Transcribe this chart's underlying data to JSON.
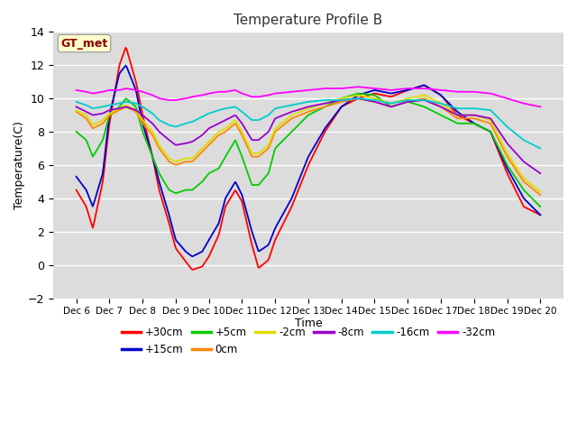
{
  "title": "Temperature Profile B",
  "xlabel": "Time",
  "ylabel": "Temperature(C)",
  "annotation": "GT_met",
  "ylim": [
    -2,
    14
  ],
  "yticks": [
    -2,
    0,
    2,
    4,
    6,
    8,
    10,
    12,
    14
  ],
  "bg_color": "#dcdcdc",
  "series_colors": {
    "+30cm": "#ff0000",
    "+15cm": "#0000cc",
    "+5cm": "#00cc00",
    "0cm": "#ff8800",
    "-2cm": "#dddd00",
    "-8cm": "#9900cc",
    "-16cm": "#00cccc",
    "-32cm": "#ff00ff"
  },
  "xtick_labels": [
    "Dec 6",
    "Dec 7",
    "Dec 8",
    "Dec 9",
    "Dec 10",
    "Dec 11",
    "Dec 12",
    "Dec 13",
    "Dec 14",
    "Dec 15",
    "Dec 16",
    "Dec 17",
    "Dec 18",
    "Dec 19",
    "Dec 20"
  ],
  "legend_row1": [
    "+30cm",
    "+15cm",
    "+5cm",
    "0cm",
    "-2cm",
    "-8cm"
  ],
  "legend_row2": [
    "-16cm",
    "-32cm"
  ]
}
